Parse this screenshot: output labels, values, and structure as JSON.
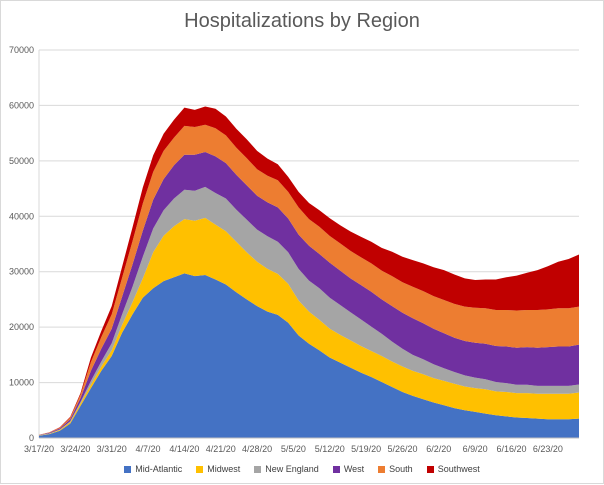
{
  "chart": {
    "title": "Hospitalizations by Region",
    "title_color": "#595959"
  },
  "frame": {
    "background": "#ffffff",
    "border_color": "#d9d9d9"
  },
  "chart_data": {
    "type": "area",
    "stacked": true,
    "title": "Hospitalizations by Region",
    "xlabel": "",
    "ylabel": "",
    "ylim": [
      0,
      70000
    ],
    "grid": "horizontal",
    "grid_color": "#d9d9d9",
    "axis_line_color": "#bfbfbf",
    "axis_label_color": "#595959",
    "legend_position": "bottom",
    "y_ticks": [
      0,
      10000,
      20000,
      30000,
      40000,
      50000,
      60000,
      70000
    ],
    "x_tick_labels": [
      "3/17/20",
      "3/24/20",
      "3/31/20",
      "4/7/20",
      "4/14/20",
      "4/21/20",
      "4/28/20",
      "5/5/20",
      "5/12/20",
      "5/19/20",
      "5/26/20",
      "6/2/20",
      "6/9/20",
      "6/16/20",
      "6/23/20"
    ],
    "x_tick_day_index": [
      0,
      7,
      14,
      21,
      28,
      35,
      42,
      49,
      56,
      63,
      70,
      77,
      84,
      91,
      98
    ],
    "x_total_days": 104,
    "x_sample_step_days": 2,
    "series": [
      {
        "name": "Mid-Atlantic",
        "color": "#4472C4",
        "values": [
          400,
          700,
          1300,
          2600,
          5800,
          9000,
          12100,
          14800,
          19000,
          22300,
          25300,
          27000,
          28300,
          29000,
          29700,
          29200,
          29400,
          28600,
          27700,
          26300,
          25000,
          23800,
          22800,
          22200,
          20800,
          18500,
          17000,
          15800,
          14500,
          13600,
          12700,
          11800,
          11000,
          10100,
          9200,
          8300,
          7600,
          7000,
          6400,
          5900,
          5400,
          5000,
          4700,
          4400,
          4100,
          3900,
          3700,
          3600,
          3500,
          3400,
          3400,
          3400,
          3500
        ]
      },
      {
        "name": "Midwest",
        "color": "#FFC000",
        "values": [
          50,
          80,
          140,
          250,
          400,
          600,
          800,
          1000,
          1400,
          2200,
          3500,
          6500,
          8200,
          9200,
          9800,
          10000,
          10300,
          9900,
          9600,
          9100,
          8500,
          8000,
          7700,
          7400,
          7000,
          6300,
          5800,
          5500,
          5200,
          5000,
          4900,
          4800,
          4700,
          4700,
          4600,
          4600,
          4500,
          4500,
          4400,
          4400,
          4400,
          4300,
          4300,
          4400,
          4300,
          4400,
          4400,
          4500,
          4500,
          4600,
          4600,
          4600,
          4700
        ]
      },
      {
        "name": "New England",
        "color": "#A5A5A5",
        "values": [
          30,
          50,
          90,
          160,
          300,
          700,
          900,
          1300,
          1900,
          2800,
          3900,
          4300,
          4600,
          5000,
          5300,
          5400,
          5600,
          5700,
          5900,
          5800,
          5900,
          5800,
          5900,
          5800,
          5700,
          5700,
          5600,
          5700,
          5600,
          5400,
          5100,
          4800,
          4400,
          4000,
          3600,
          3200,
          2900,
          2700,
          2500,
          2300,
          2100,
          2000,
          1900,
          1800,
          1700,
          1600,
          1500,
          1500,
          1400,
          1400,
          1400,
          1400,
          1450
        ]
      },
      {
        "name": "West",
        "color": "#7030A0",
        "values": [
          60,
          100,
          180,
          350,
          700,
          1800,
          2300,
          2600,
          3200,
          4000,
          4700,
          5200,
          5600,
          6000,
          6300,
          6500,
          6300,
          6600,
          6400,
          6300,
          6200,
          6100,
          6100,
          6200,
          6100,
          6200,
          6300,
          6200,
          6300,
          6200,
          6100,
          6200,
          6300,
          6200,
          6400,
          6500,
          6600,
          6500,
          6400,
          6300,
          6200,
          6200,
          6300,
          6400,
          6500,
          6600,
          6700,
          6800,
          6900,
          7000,
          7100,
          7100,
          7200
        ]
      },
      {
        "name": "South",
        "color": "#ED7D31",
        "values": [
          40,
          80,
          150,
          300,
          600,
          1600,
          2100,
          2600,
          3400,
          4200,
          4900,
          5000,
          5100,
          5000,
          5200,
          5000,
          4900,
          5100,
          5000,
          4900,
          4900,
          4800,
          4800,
          4900,
          4800,
          4900,
          4800,
          4900,
          4850,
          4900,
          4950,
          5000,
          5100,
          5200,
          5400,
          5500,
          5700,
          5800,
          5900,
          6000,
          6100,
          6200,
          6300,
          6400,
          6500,
          6600,
          6700,
          6700,
          6800,
          6800,
          6900,
          6900,
          6850
        ]
      },
      {
        "name": "Southwest",
        "color": "#C00000",
        "values": [
          20,
          40,
          80,
          150,
          300,
          800,
          1100,
          1500,
          2000,
          2500,
          2900,
          3000,
          3100,
          3200,
          3300,
          3100,
          3300,
          3500,
          3400,
          3400,
          3400,
          3300,
          3100,
          2900,
          2700,
          2800,
          2900,
          3000,
          3200,
          3300,
          3500,
          3700,
          3900,
          4100,
          4400,
          4600,
          4800,
          5000,
          5200,
          5400,
          5300,
          5100,
          5000,
          5200,
          5500,
          5900,
          6300,
          6700,
          7200,
          7800,
          8400,
          8900,
          9400
        ]
      }
    ]
  }
}
